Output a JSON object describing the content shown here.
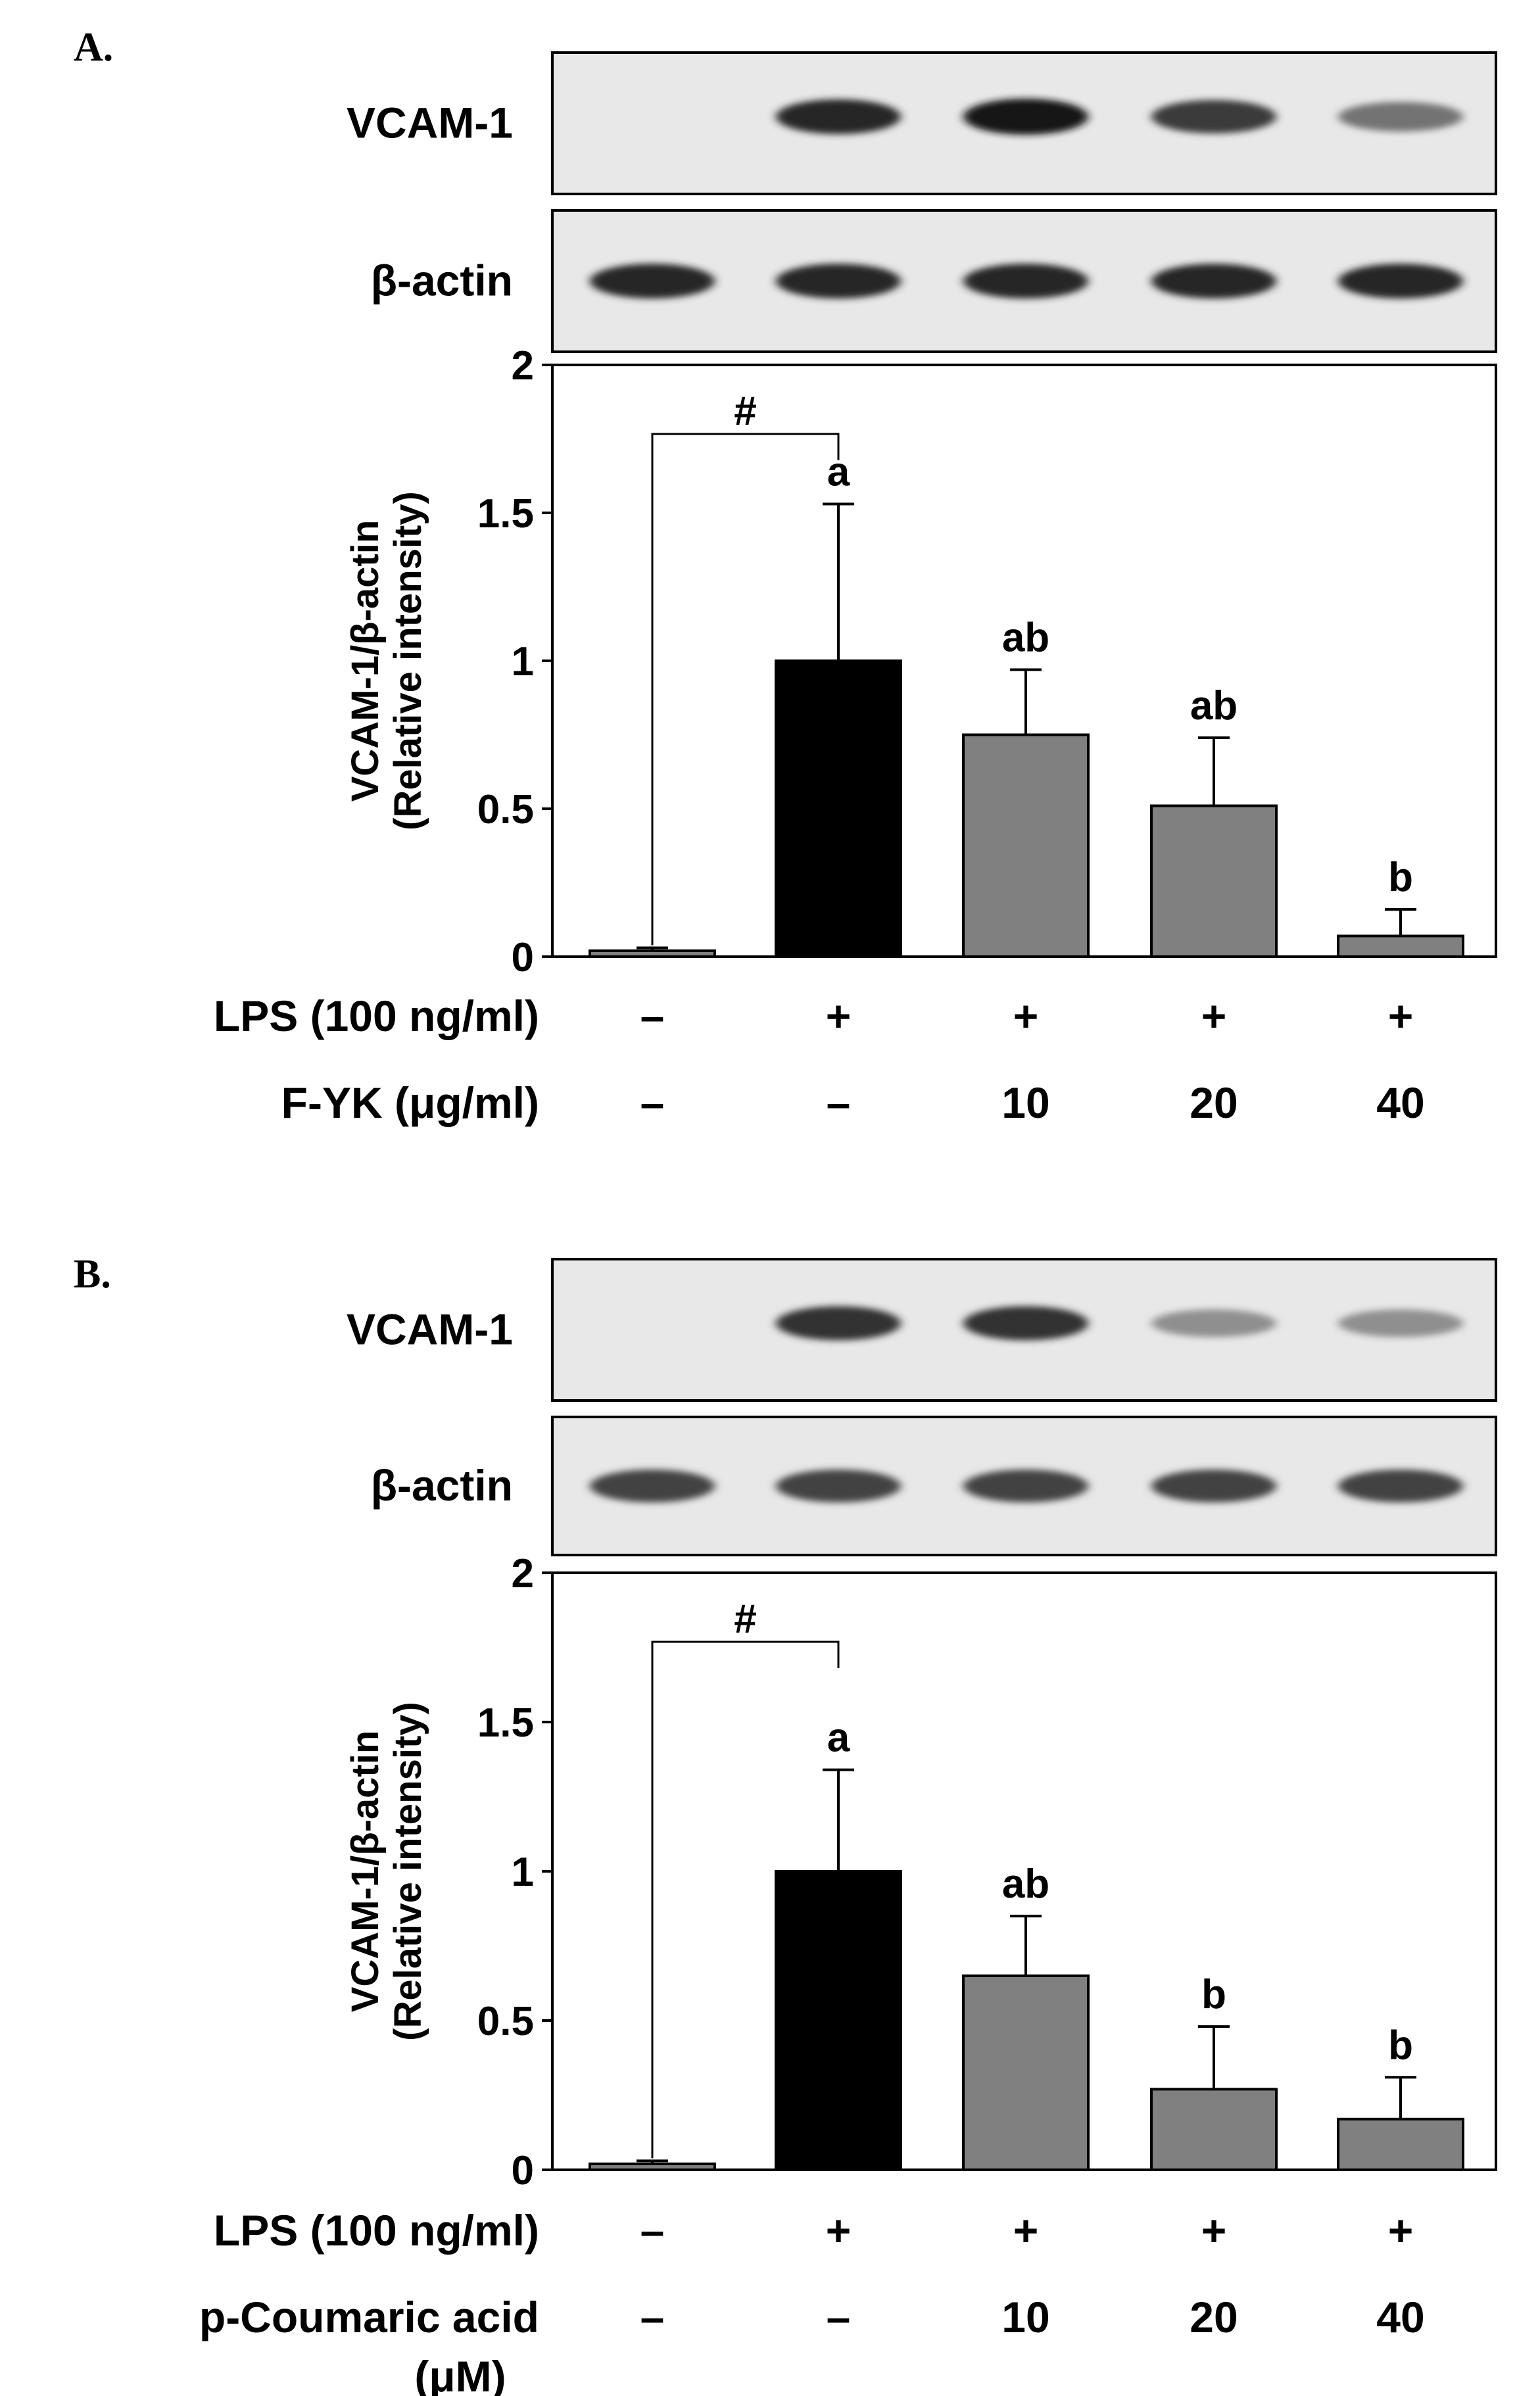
{
  "chart_data": [
    {
      "panel": "A.",
      "type": "bar",
      "blots": [
        {
          "label": "VCAM-1",
          "intensity": [
            0,
            0.85,
            0.95,
            0.75,
            0.45
          ]
        },
        {
          "label": "β-actin",
          "intensity": [
            0.85,
            0.85,
            0.85,
            0.85,
            0.85
          ]
        }
      ],
      "ylabel_line1": "VCAM-1/β-actin",
      "ylabel_line2": "(Relative intensity)",
      "ylim": [
        0,
        2
      ],
      "yticks": [
        "0",
        "0.5",
        "1",
        "1.5",
        "2"
      ],
      "values": [
        0.02,
        1.0,
        0.75,
        0.51,
        0.07
      ],
      "errors": [
        0.01,
        0.53,
        0.22,
        0.23,
        0.09
      ],
      "bar_colors": [
        "#808080",
        "#000000",
        "#808080",
        "#808080",
        "#808080"
      ],
      "significance": [
        "",
        "a",
        "ab",
        "ab",
        "b"
      ],
      "bracket_label": "#",
      "conditions": [
        {
          "label": "LPS (100 ng/ml)",
          "values": [
            "–",
            "+",
            "+",
            "+",
            "+"
          ]
        },
        {
          "label": "F-YK (μg/ml)",
          "values": [
            "–",
            "–",
            "10",
            "20",
            "40"
          ]
        }
      ]
    },
    {
      "panel": "B.",
      "type": "bar",
      "blots": [
        {
          "label": "VCAM-1",
          "intensity": [
            0,
            0.8,
            0.8,
            0.3,
            0.3
          ]
        },
        {
          "label": "β-actin",
          "intensity": [
            0.7,
            0.7,
            0.7,
            0.7,
            0.7
          ]
        }
      ],
      "ylabel_line1": "VCAM-1/β-actin",
      "ylabel_line2": "(Relative intensity)",
      "ylim": [
        0,
        2
      ],
      "yticks": [
        "0",
        "0.5",
        "1",
        "1.5",
        "2"
      ],
      "values": [
        0.02,
        1.0,
        0.65,
        0.27,
        0.17
      ],
      "errors": [
        0.01,
        0.34,
        0.2,
        0.21,
        0.14
      ],
      "bar_colors": [
        "#808080",
        "#000000",
        "#808080",
        "#808080",
        "#808080"
      ],
      "significance": [
        "",
        "a",
        "ab",
        "b",
        "b"
      ],
      "bracket_label": "#",
      "conditions": [
        {
          "label": "LPS (100 ng/ml)",
          "values": [
            "–",
            "+",
            "+",
            "+",
            "+"
          ]
        },
        {
          "label": "p-Coumaric acid",
          "label_line2": "(μM)",
          "values": [
            "–",
            "–",
            "10",
            "20",
            "40"
          ]
        }
      ]
    }
  ]
}
